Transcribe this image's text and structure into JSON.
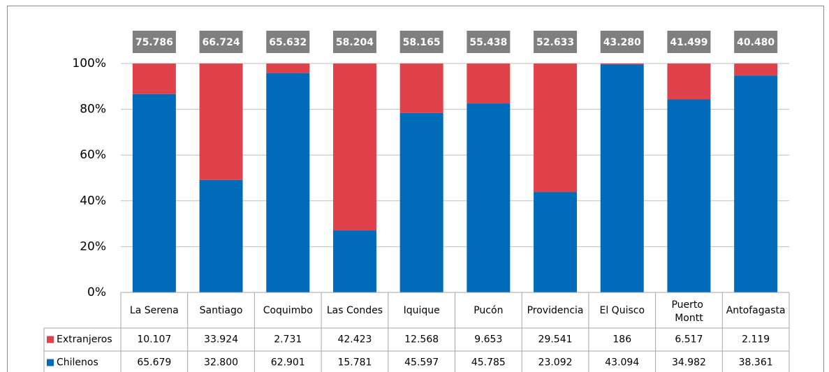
{
  "chart_data": {
    "type": "stacked_percent_bar",
    "categories": [
      "La Serena",
      "Santiago",
      "Coquimbo",
      "Las Condes",
      "Iquique",
      "Pucón",
      "Providencia",
      "El Quisco",
      "Puerto Montt",
      "Antofagasta"
    ],
    "series": [
      {
        "name": "Extranjeros",
        "color": "#e0424b",
        "values": [
          10107,
          33924,
          2731,
          42423,
          12568,
          9653,
          29541,
          186,
          6517,
          2119
        ],
        "value_labels": [
          "10.107",
          "33.924",
          "2.731",
          "42.423",
          "12.568",
          "9.653",
          "29.541",
          "186",
          "6.517",
          "2.119"
        ]
      },
      {
        "name": "Chilenos",
        "color": "#006bb8",
        "values": [
          65679,
          32800,
          62901,
          15781,
          45597,
          45785,
          23092,
          43094,
          34982,
          38361
        ],
        "value_labels": [
          "65.679",
          "32.800",
          "62.901",
          "15.781",
          "45.597",
          "45.785",
          "23.092",
          "43.094",
          "34.982",
          "38.361"
        ]
      }
    ],
    "totals": {
      "values": [
        75786,
        66724,
        65632,
        58204,
        58165,
        55438,
        52633,
        43280,
        41499,
        40480
      ],
      "value_labels": [
        "75.786",
        "66.724",
        "65.632",
        "58.204",
        "58.165",
        "55.438",
        "52.633",
        "43.280",
        "41.499",
        "40.480"
      ]
    },
    "ylim": [
      0,
      100
    ],
    "yticks": [
      {
        "value": 0,
        "label": "0%"
      },
      {
        "value": 20,
        "label": "20%"
      },
      {
        "value": 40,
        "label": "40%"
      },
      {
        "value": 60,
        "label": "60%"
      },
      {
        "value": 80,
        "label": "80%"
      },
      {
        "value": 100,
        "label": "100%"
      }
    ],
    "grid": true
  }
}
